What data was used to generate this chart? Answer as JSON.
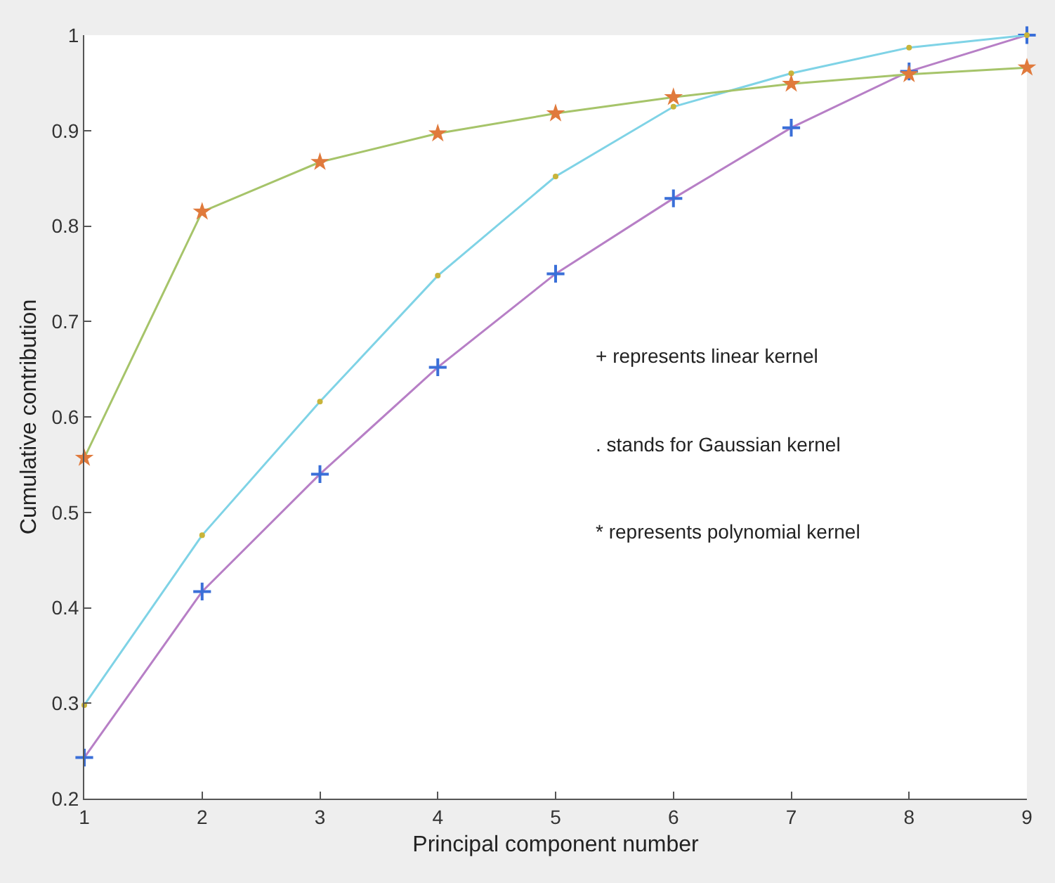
{
  "chart_data": {
    "type": "line",
    "xlabel": "Principal component number",
    "ylabel": "Cumulative contribution",
    "x": [
      1,
      2,
      3,
      4,
      5,
      6,
      7,
      8,
      9
    ],
    "series": [
      {
        "color": "#b77fc6",
        "marker": "cross",
        "colors": [
          "#3a6fd8",
          "#3a6fd8",
          "#3a6fd8",
          "#3a6fd8",
          "#3a6fd8",
          "#3a6fd8",
          "#3a6fd8",
          "#3a6fd8",
          "#3a6fd8"
        ],
        "values": [
          0.243,
          0.417,
          0.54,
          0.652,
          0.75,
          0.829,
          0.903,
          0.962,
          1.0
        ]
      },
      {
        "color": "#7fd3e6",
        "marker": "circle",
        "colors": [
          "#c8b43a",
          "#c8b43a",
          "#c8b43a",
          "#c8b43a",
          "#c8b43a",
          "#c8b43a",
          "#c8b43a",
          "#c8b43a",
          "#c8b43a"
        ],
        "values": [
          0.298,
          0.476,
          0.616,
          0.748,
          0.852,
          0.925,
          0.96,
          0.987,
          1.0
        ]
      },
      {
        "color": "#a6c46a",
        "marker": "star",
        "colors": [
          "#e07a3c",
          "#e07a3c",
          "#e07a3c",
          "#e07a3c",
          "#e07a3c",
          "#e07a3c",
          "#e07a3c",
          "#e07a3c",
          "#e07a3c"
        ],
        "values": [
          0.557,
          0.815,
          0.867,
          0.897,
          0.918,
          0.935,
          0.949,
          0.959,
          0.966
        ]
      }
    ],
    "xlim": [
      1,
      9
    ],
    "xticks": [
      1,
      2,
      3,
      4,
      5,
      6,
      7,
      8,
      9
    ],
    "ylim": [
      0.2,
      1
    ],
    "yticks": [
      0.2,
      0.3,
      0.4,
      0.5,
      0.6,
      0.7,
      0.8,
      0.9,
      1
    ],
    "annotations": [
      "+ represents linear kernel",
      ". stands for Gaussian kernel",
      "* represents polynomial kernel"
    ]
  }
}
